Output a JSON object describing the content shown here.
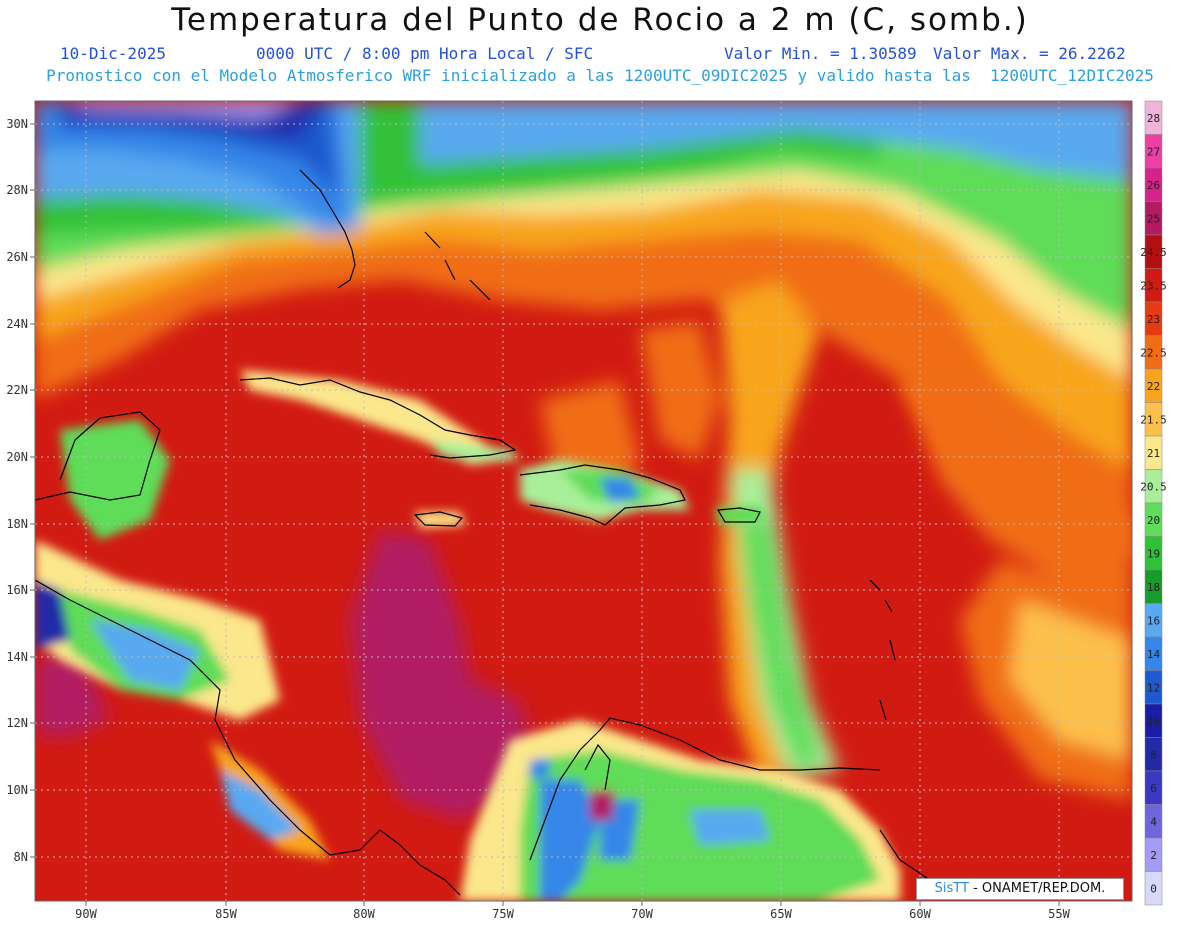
{
  "title": "Temperatura del Punto de Rocio a 2 m (C, somb.)",
  "date": "10-Dic-2025",
  "time_info": "0000 UTC / 8:00 pm Hora Local / SFC",
  "min_value": "Valor Min. = 1.30589",
  "max_value": "Valor Max. = 26.2262",
  "model_info": "Pronostico con el Modelo Atmosferico WRF inicializado a las 1200UTC_09DIC2025 y valido hasta las  1200UTC_12DIC2025",
  "credit": {
    "brand": "SisTT",
    "org": "- ONAMET/REP.DOM."
  },
  "lat_labels": [
    "30N",
    "28N",
    "26N",
    "24N",
    "22N",
    "20N",
    "18N",
    "16N",
    "14N",
    "12N",
    "10N",
    "8N"
  ],
  "lon_labels": [
    "90W",
    "85W",
    "80W",
    "75W",
    "70W",
    "65W",
    "60W",
    "55W"
  ],
  "colorbar": [
    {
      "label": "28",
      "color": "#f2b3d9"
    },
    {
      "label": "27",
      "color": "#ee3fa8"
    },
    {
      "label": "26",
      "color": "#d6238a"
    },
    {
      "label": "25",
      "color": "#b21a62"
    },
    {
      "label": "24.5",
      "color": "#b30f10"
    },
    {
      "label": "23.5",
      "color": "#d11b12"
    },
    {
      "label": "23",
      "color": "#e63a13"
    },
    {
      "label": "22.5",
      "color": "#f06d13"
    },
    {
      "label": "22",
      "color": "#f8a51e"
    },
    {
      "label": "21.5",
      "color": "#fdc04c"
    },
    {
      "label": "21",
      "color": "#fbe78c"
    },
    {
      "label": "20.5",
      "color": "#a9ef9a"
    },
    {
      "label": "20",
      "color": "#5fdc58"
    },
    {
      "label": "19",
      "color": "#31c138"
    },
    {
      "label": "18",
      "color": "#179c2a"
    },
    {
      "label": "16",
      "color": "#58a9f0"
    },
    {
      "label": "14",
      "color": "#3586e8"
    },
    {
      "label": "12",
      "color": "#1d59cf"
    },
    {
      "label": "10",
      "color": "#1a1ea6"
    },
    {
      "label": "8",
      "color": "#2429a8"
    },
    {
      "label": "6",
      "color": "#3b39c2"
    },
    {
      "label": "4",
      "color": "#6f66de"
    },
    {
      "label": "2",
      "color": "#a59af4"
    },
    {
      "label": "0",
      "color": "#d8d8fb"
    }
  ]
}
